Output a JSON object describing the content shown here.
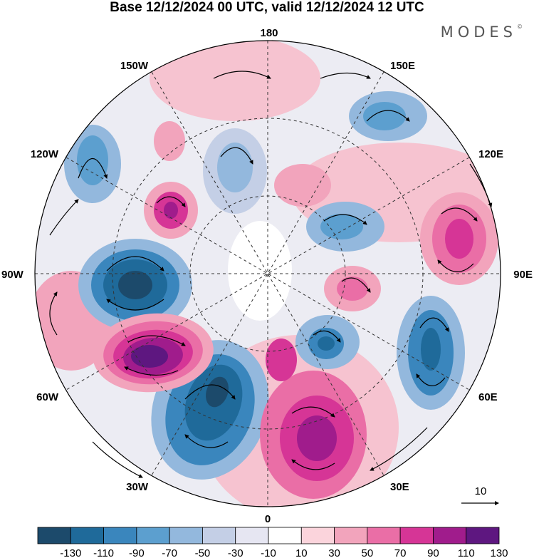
{
  "title": "Base 12/12/2024 00 UTC, valid 12/12/2024 12 UTC",
  "brand": "MODES",
  "brand_mark": "©",
  "map": {
    "projection_labels": {
      "top": "180",
      "bottom": "0",
      "left": "90W",
      "right": "90E",
      "upper_left_1": "150W",
      "upper_left_2": "120W",
      "upper_right_1": "150E",
      "upper_right_2": "120E",
      "lower_left_1": "60W",
      "lower_left_2": "30W",
      "lower_right_1": "60E",
      "lower_right_2": "30E"
    },
    "reference_vector_label": "10"
  },
  "colorbar": {
    "tick_labels": [
      "-130",
      "-110",
      "-90",
      "-70",
      "-50",
      "-30",
      "-10",
      "10",
      "30",
      "50",
      "70",
      "90",
      "110",
      "130"
    ],
    "colors": [
      "#1c4a6b",
      "#1f6a9a",
      "#3a86bd",
      "#5c9fcf",
      "#93b8dd",
      "#c4cfe6",
      "#e6e6f2",
      "#ffffff",
      "#fbd4dc",
      "#f2a4bc",
      "#ea6ea6",
      "#d63596",
      "#a01c8c",
      "#5e1780"
    ]
  }
}
